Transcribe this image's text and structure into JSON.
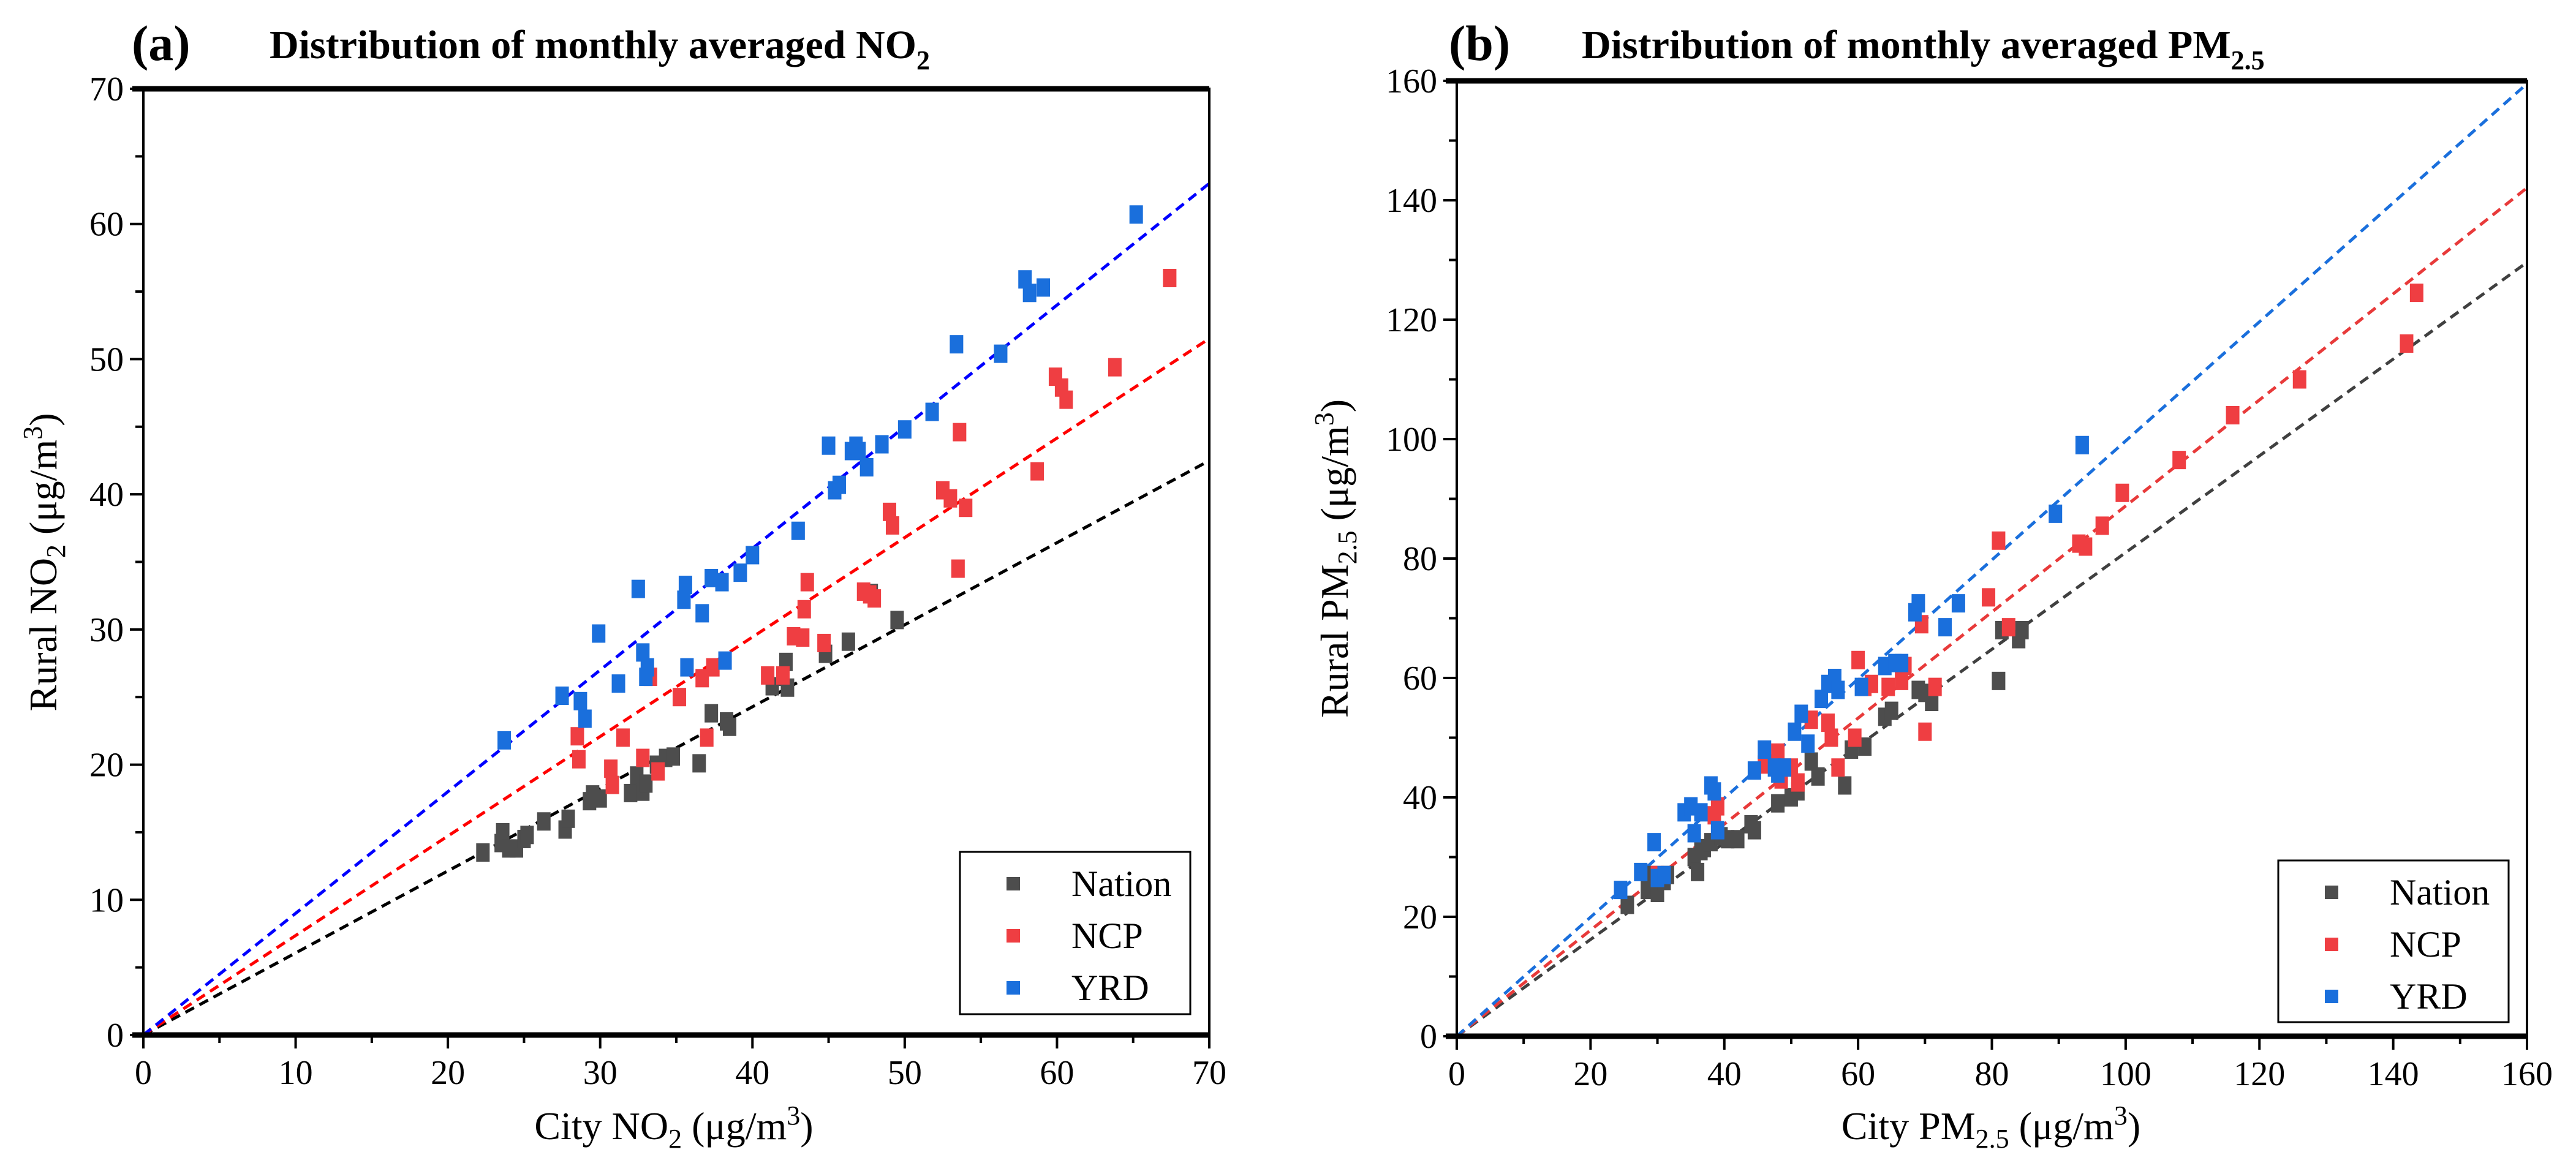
{
  "chart_data": [
    {
      "type": "scatter",
      "panel_label": "(a)",
      "title": "Distribution of monthly averaged NO",
      "title_sub": "2",
      "xlabel": {
        "pre": "City NO",
        "sub": "2",
        "post": " (μg/m",
        "sup": "3",
        "end": ")"
      },
      "ylabel": {
        "pre": "Rural NO",
        "sub": "2",
        "post": " (μg/m",
        "sup": "3",
        "end": ")"
      },
      "xlim": [
        0,
        70
      ],
      "ylim": [
        0,
        70
      ],
      "xticks": [
        0,
        10,
        20,
        30,
        40,
        50,
        60,
        70
      ],
      "yticks": [
        0,
        10,
        20,
        30,
        40,
        50,
        60,
        70
      ],
      "xtick_labels": [
        "0",
        "10",
        "20",
        "30",
        "40",
        "50",
        "60",
        "70"
      ],
      "ytick_labels": [
        "0",
        "10",
        "20",
        "30",
        "40",
        "50",
        "60",
        "70"
      ],
      "grid": false,
      "legend_position": "bottom-right",
      "series": [
        {
          "name": "Nation",
          "color": "#4D4D4D",
          "fit_color": "#000000",
          "fit_slope": 0.607,
          "points": [
            [
              22.3,
              13.5
            ],
            [
              23.5,
              14.2
            ],
            [
              23.6,
              15.0
            ],
            [
              24.0,
              13.8
            ],
            [
              24.5,
              13.8
            ],
            [
              25.0,
              14.5
            ],
            [
              25.2,
              14.8
            ],
            [
              26.3,
              15.8
            ],
            [
              27.7,
              15.2
            ],
            [
              27.9,
              16.0
            ],
            [
              29.3,
              17.3
            ],
            [
              29.5,
              17.8
            ],
            [
              30.0,
              17.5
            ],
            [
              32.0,
              17.9
            ],
            [
              32.4,
              19.2
            ],
            [
              32.8,
              18.0
            ],
            [
              33.0,
              18.6
            ],
            [
              33.7,
              20.0
            ],
            [
              34.3,
              20.5
            ],
            [
              34.8,
              20.6
            ],
            [
              36.5,
              20.1
            ],
            [
              37.3,
              23.8
            ],
            [
              38.3,
              23.2
            ],
            [
              38.5,
              22.8
            ],
            [
              41.3,
              25.8
            ],
            [
              42.0,
              26.5
            ],
            [
              42.2,
              27.6
            ],
            [
              42.3,
              25.7
            ],
            [
              44.8,
              28.2
            ],
            [
              46.3,
              29.1
            ],
            [
              47.8,
              32.7
            ],
            [
              49.5,
              30.7
            ]
          ]
        },
        {
          "name": "NCP",
          "color": "#EF3E42",
          "fit_color": "#FF0000",
          "fit_slope": 0.736,
          "points": [
            [
              28.5,
              22.1
            ],
            [
              28.6,
              20.4
            ],
            [
              30.7,
              19.7
            ],
            [
              30.8,
              18.5
            ],
            [
              31.5,
              22.0
            ],
            [
              32.8,
              20.5
            ],
            [
              33.3,
              26.5
            ],
            [
              33.8,
              19.5
            ],
            [
              35.2,
              25.0
            ],
            [
              36.7,
              26.4
            ],
            [
              37.0,
              22.0
            ],
            [
              37.4,
              27.2
            ],
            [
              41.0,
              26.6
            ],
            [
              42.0,
              26.6
            ],
            [
              42.7,
              29.5
            ],
            [
              43.3,
              29.4
            ],
            [
              43.4,
              31.5
            ],
            [
              43.6,
              33.5
            ],
            [
              44.7,
              29.0
            ],
            [
              47.3,
              32.8
            ],
            [
              47.7,
              32.6
            ],
            [
              48.0,
              32.3
            ],
            [
              49.0,
              38.7
            ],
            [
              49.2,
              37.7
            ],
            [
              52.5,
              40.3
            ],
            [
              53.0,
              39.7
            ],
            [
              53.6,
              44.6
            ],
            [
              53.5,
              34.5
            ],
            [
              54.0,
              39.0
            ],
            [
              58.7,
              41.7
            ],
            [
              59.9,
              48.7
            ],
            [
              60.3,
              47.9
            ],
            [
              60.6,
              47.0
            ],
            [
              63.8,
              49.4
            ],
            [
              67.4,
              56.0
            ]
          ]
        },
        {
          "name": "YRD",
          "color": "#1A6FDC",
          "fit_color": "#0000FF",
          "fit_slope": 0.9,
          "points": [
            [
              23.7,
              21.8
            ],
            [
              27.5,
              25.1
            ],
            [
              28.7,
              24.7
            ],
            [
              29.0,
              23.4
            ],
            [
              29.9,
              29.7
            ],
            [
              31.2,
              26.0
            ],
            [
              32.5,
              33.0
            ],
            [
              32.8,
              28.3
            ],
            [
              33.1,
              27.2
            ],
            [
              33.0,
              26.5
            ],
            [
              35.5,
              32.2
            ],
            [
              35.6,
              33.3
            ],
            [
              35.7,
              27.2
            ],
            [
              36.7,
              31.2
            ],
            [
              37.3,
              33.8
            ],
            [
              38.0,
              33.5
            ],
            [
              38.2,
              27.7
            ],
            [
              39.2,
              34.2
            ],
            [
              40.0,
              35.5
            ],
            [
              43.0,
              37.3
            ],
            [
              45.0,
              43.6
            ],
            [
              45.4,
              40.3
            ],
            [
              45.7,
              40.7
            ],
            [
              46.5,
              43.2
            ],
            [
              46.8,
              43.6
            ],
            [
              47.0,
              43.2
            ],
            [
              47.5,
              42.0
            ],
            [
              48.5,
              43.7
            ],
            [
              50.0,
              44.8
            ],
            [
              51.8,
              46.1
            ],
            [
              53.4,
              51.1
            ],
            [
              56.3,
              50.4
            ],
            [
              57.9,
              55.9
            ],
            [
              58.2,
              54.9
            ],
            [
              59.1,
              55.3
            ],
            [
              65.2,
              60.7
            ]
          ]
        }
      ]
    },
    {
      "type": "scatter",
      "panel_label": "(b)",
      "title": "Distribution of monthly averaged PM",
      "title_sub": "2.5",
      "xlabel": {
        "pre": "City PM",
        "sub": "2.5",
        "post": " (μg/m",
        "sup": "3",
        "end": ")"
      },
      "ylabel": {
        "pre": "Rural PM",
        "sub": "2.5",
        "post": " (μg/m",
        "sup": "3",
        "end": ")"
      },
      "xlim": [
        0,
        160
      ],
      "ylim": [
        0,
        160
      ],
      "xticks": [
        0,
        20,
        40,
        60,
        80,
        100,
        120,
        140,
        160
      ],
      "yticks": [
        0,
        20,
        40,
        60,
        80,
        100,
        120,
        140,
        160
      ],
      "xtick_labels": [
        "0",
        "20",
        "40",
        "60",
        "80",
        "100",
        "120",
        "140",
        "160"
      ],
      "ytick_labels": [
        "0",
        "20",
        "40",
        "60",
        "80",
        "100",
        "120",
        "140",
        "160"
      ],
      "grid": false,
      "legend_position": "bottom-right",
      "series": [
        {
          "name": "Nation",
          "color": "#4D4D4D",
          "fit_color": "#404040",
          "fit_slope": 0.81,
          "points": [
            [
              25.5,
              22.0
            ],
            [
              28.5,
              24.5
            ],
            [
              29.0,
              27.0
            ],
            [
              30.0,
              24.0
            ],
            [
              31.0,
              26.0
            ],
            [
              31.5,
              27.0
            ],
            [
              35.5,
              30.0
            ],
            [
              36.0,
              27.5
            ],
            [
              36.5,
              31.0
            ],
            [
              37.0,
              31.5
            ],
            [
              38.0,
              32.5
            ],
            [
              39.5,
              33.5
            ],
            [
              40.5,
              33.0
            ],
            [
              42.0,
              33.0
            ],
            [
              44.0,
              35.5
            ],
            [
              44.5,
              34.5
            ],
            [
              48.0,
              39.0
            ],
            [
              50.0,
              40.0
            ],
            [
              51.0,
              41.0
            ],
            [
              53.0,
              46.0
            ],
            [
              54.0,
              43.5
            ],
            [
              58.0,
              42.0
            ],
            [
              59.0,
              48.0
            ],
            [
              61.0,
              48.5
            ],
            [
              64.0,
              53.5
            ],
            [
              65.0,
              54.5
            ],
            [
              69.0,
              58.0
            ],
            [
              70.0,
              57.5
            ],
            [
              71.0,
              56.0
            ],
            [
              81.0,
              59.5
            ],
            [
              81.5,
              68.0
            ],
            [
              84.0,
              66.5
            ],
            [
              84.5,
              68.0
            ]
          ]
        },
        {
          "name": "NCP",
          "color": "#EF3E42",
          "fit_color": "#E83A3A",
          "fit_slope": 0.888,
          "points": [
            [
              30.0,
              27.0
            ],
            [
              38.5,
              37.0
            ],
            [
              39.0,
              38.5
            ],
            [
              46.0,
              45.5
            ],
            [
              48.0,
              47.5
            ],
            [
              48.5,
              43.0
            ],
            [
              50.0,
              45.0
            ],
            [
              51.0,
              42.5
            ],
            [
              53.0,
              53.0
            ],
            [
              55.5,
              52.5
            ],
            [
              56.0,
              50.0
            ],
            [
              57.0,
              45.0
            ],
            [
              59.5,
              50.0
            ],
            [
              60.0,
              63.0
            ],
            [
              61.0,
              58.5
            ],
            [
              62.0,
              59.0
            ],
            [
              64.5,
              58.5
            ],
            [
              66.5,
              59.5
            ],
            [
              67.0,
              62.0
            ],
            [
              69.5,
              69.0
            ],
            [
              70.0,
              51.0
            ],
            [
              71.5,
              58.5
            ],
            [
              79.5,
              73.5
            ],
            [
              81.0,
              83.0
            ],
            [
              82.5,
              68.5
            ],
            [
              93.0,
              82.5
            ],
            [
              94.0,
              82.0
            ],
            [
              96.5,
              85.5
            ],
            [
              99.5,
              91.0
            ],
            [
              108.0,
              96.5
            ],
            [
              116.0,
              104.0
            ],
            [
              126.0,
              110.0
            ],
            [
              142.0,
              116.0
            ],
            [
              143.5,
              124.5
            ]
          ]
        },
        {
          "name": "YRD",
          "color": "#1A6FDC",
          "fit_color": "#1A6FDC",
          "fit_slope": 0.997,
          "points": [
            [
              24.5,
              24.5
            ],
            [
              27.5,
              27.5
            ],
            [
              29.5,
              32.5
            ],
            [
              30.0,
              26.5
            ],
            [
              31.0,
              27.0
            ],
            [
              34.0,
              37.5
            ],
            [
              35.0,
              38.5
            ],
            [
              35.5,
              34.0
            ],
            [
              36.5,
              37.5
            ],
            [
              38.0,
              42.0
            ],
            [
              38.5,
              41.0
            ],
            [
              39.0,
              34.5
            ],
            [
              44.5,
              44.5
            ],
            [
              46.0,
              48.0
            ],
            [
              47.5,
              45.0
            ],
            [
              48.0,
              44.0
            ],
            [
              49.0,
              45.0
            ],
            [
              50.5,
              51.0
            ],
            [
              51.5,
              54.0
            ],
            [
              52.5,
              49.0
            ],
            [
              54.5,
              56.5
            ],
            [
              55.5,
              59.0
            ],
            [
              56.5,
              60.0
            ],
            [
              57.0,
              58.0
            ],
            [
              60.5,
              58.5
            ],
            [
              64.0,
              62.0
            ],
            [
              65.5,
              62.5
            ],
            [
              66.5,
              62.5
            ],
            [
              68.5,
              71.0
            ],
            [
              69.0,
              72.5
            ],
            [
              73.0,
              68.5
            ],
            [
              75.0,
              72.5
            ],
            [
              89.5,
              87.5
            ],
            [
              93.5,
              99.0
            ]
          ]
        }
      ]
    }
  ]
}
